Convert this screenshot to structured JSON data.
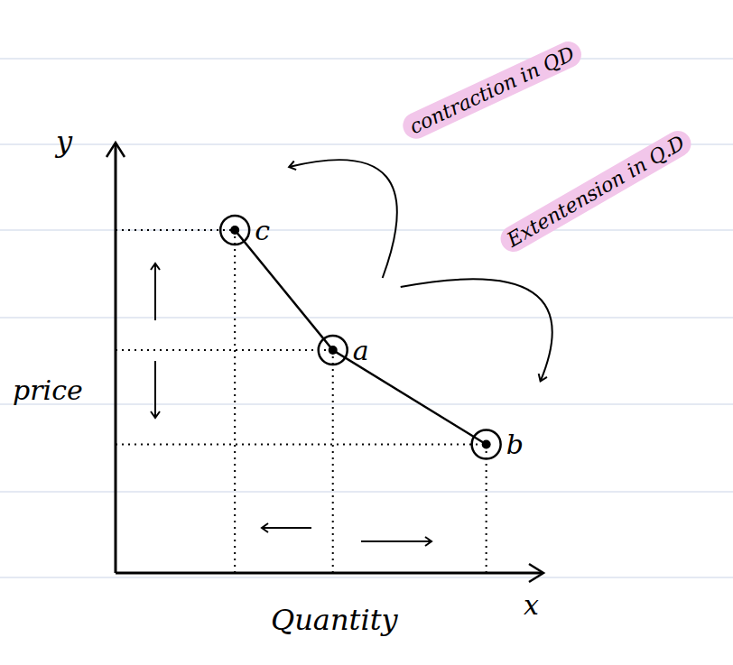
{
  "chart_data": {
    "type": "line",
    "x_label": "Quantity",
    "y_label": "price",
    "x_axis_letter": "x",
    "y_axis_letter": "y",
    "x": [
      2.8,
      5.1,
      8.7
    ],
    "values": [
      8.0,
      5.2,
      3.0
    ],
    "point_labels": [
      "c",
      "a",
      "b"
    ],
    "xlim": [
      0,
      10
    ],
    "ylim": [
      0,
      10
    ],
    "tick_labels": false,
    "color": "#000000",
    "marker": "o",
    "annotations": [
      {
        "text": "contraction in QD",
        "from": "a",
        "to": "c"
      },
      {
        "text": "Extentension in Q.D",
        "from": "a",
        "to": "b"
      }
    ]
  }
}
